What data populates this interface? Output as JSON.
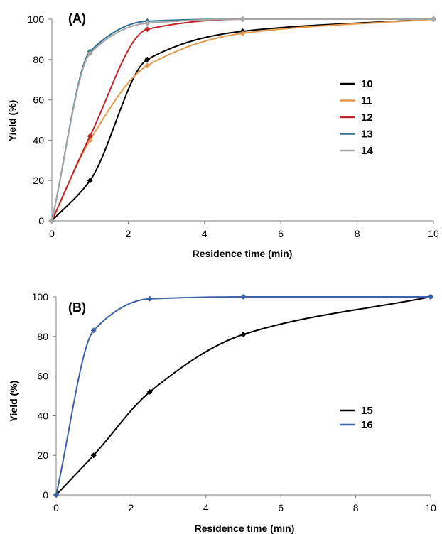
{
  "chart_data": [
    {
      "type": "line",
      "panel_label": "(A)",
      "xlabel": "Residence time (min)",
      "ylabel": "Yield (%)",
      "xlim": [
        0,
        10
      ],
      "ylim": [
        0,
        100
      ],
      "xticks": [
        0,
        2,
        4,
        6,
        8,
        10
      ],
      "yticks": [
        0,
        20,
        40,
        60,
        80,
        100
      ],
      "grid": false,
      "legend_position": "right",
      "x": [
        0,
        1,
        2.5,
        5,
        10
      ],
      "series": [
        {
          "name": "10",
          "color": "#000000",
          "values": [
            0,
            20,
            80,
            94,
            100
          ]
        },
        {
          "name": "11",
          "color": "#e49a4c",
          "values": [
            0,
            40,
            77,
            93,
            100
          ]
        },
        {
          "name": "12",
          "color": "#c0272d",
          "values": [
            0,
            42,
            95,
            100,
            100
          ]
        },
        {
          "name": "13",
          "color": "#2f6f8f",
          "values": [
            0,
            84,
            99,
            100,
            100
          ]
        },
        {
          "name": "14",
          "color": "#a6a6a6",
          "values": [
            0,
            83,
            98,
            100,
            100
          ]
        }
      ]
    },
    {
      "type": "line",
      "panel_label": "(B)",
      "xlabel": "Residence time (min)",
      "ylabel": "Yield (%)",
      "xlim": [
        0,
        10
      ],
      "ylim": [
        0,
        100
      ],
      "xticks": [
        0,
        2,
        4,
        6,
        8,
        10
      ],
      "yticks": [
        0,
        20,
        40,
        60,
        80,
        100
      ],
      "grid": false,
      "legend_position": "right",
      "x": [
        0,
        1,
        2.5,
        5,
        10
      ],
      "series": [
        {
          "name": "15",
          "color": "#000000",
          "values": [
            0,
            20,
            52,
            81,
            100
          ]
        },
        {
          "name": "16",
          "color": "#3d62a8",
          "values": [
            0,
            83,
            99,
            100,
            100
          ]
        }
      ]
    }
  ]
}
